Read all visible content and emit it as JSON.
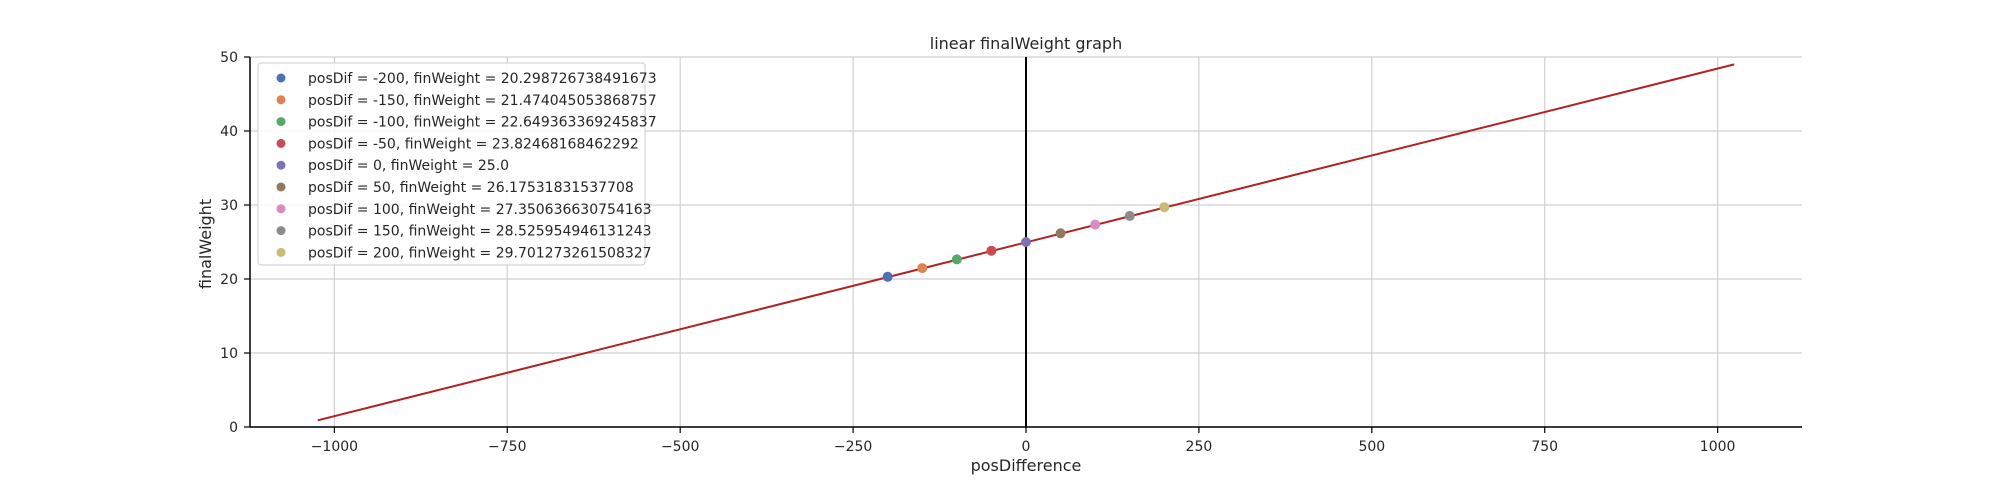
{
  "chart_data": {
    "type": "scatter",
    "title": "linear finalWeight graph",
    "xlabel": "posDifference",
    "ylabel": "finalWeight",
    "xlim": [
      -1122,
      1122
    ],
    "ylim": [
      0,
      50
    ],
    "x_ticks": [
      -1000,
      -750,
      -500,
      -250,
      0,
      250,
      500,
      750,
      1000
    ],
    "x_tick_labels": [
      "−1000",
      "−750",
      "−500",
      "−250",
      "0",
      "250",
      "500",
      "750",
      "1000"
    ],
    "y_ticks": [
      0,
      10,
      20,
      30,
      40,
      50
    ],
    "y_tick_labels": [
      "0",
      "10",
      "20",
      "30",
      "40",
      "50"
    ],
    "grid": true,
    "legend_position": "top-left",
    "line": {
      "x": [
        -1024,
        1024
      ],
      "y": [
        0.9,
        49.0
      ],
      "color": "#b22222"
    },
    "vertical_line": {
      "x": 0,
      "color": "#000000"
    },
    "series": [
      {
        "name": "posDif = -200, finWeight = 20.298726738491673",
        "x": -200,
        "y": 20.298726738491673,
        "color": "#4c72b0"
      },
      {
        "name": "posDif = -150, finWeight = 21.474045053868757",
        "x": -150,
        "y": 21.474045053868757,
        "color": "#dd8452"
      },
      {
        "name": "posDif = -100, finWeight = 22.649363369245837",
        "x": -100,
        "y": 22.649363369245837,
        "color": "#55a868"
      },
      {
        "name": "posDif = -50, finWeight = 23.82468168462292",
        "x": -50,
        "y": 23.82468168462292,
        "color": "#c44e52"
      },
      {
        "name": "posDif = 0, finWeight = 25.0",
        "x": 0,
        "y": 25.0,
        "color": "#8172b3"
      },
      {
        "name": "posDif = 50, finWeight = 26.17531831537708",
        "x": 50,
        "y": 26.17531831537708,
        "color": "#937860"
      },
      {
        "name": "posDif = 100, finWeight = 27.350636630754163",
        "x": 100,
        "y": 27.350636630754163,
        "color": "#da8bc3"
      },
      {
        "name": "posDif = 150, finWeight = 28.525954946131243",
        "x": 150,
        "y": 28.525954946131243,
        "color": "#8c8c8c"
      },
      {
        "name": "posDif = 200, finWeight = 29.701273261508327",
        "x": 200,
        "y": 29.701273261508327,
        "color": "#ccb974"
      }
    ]
  }
}
